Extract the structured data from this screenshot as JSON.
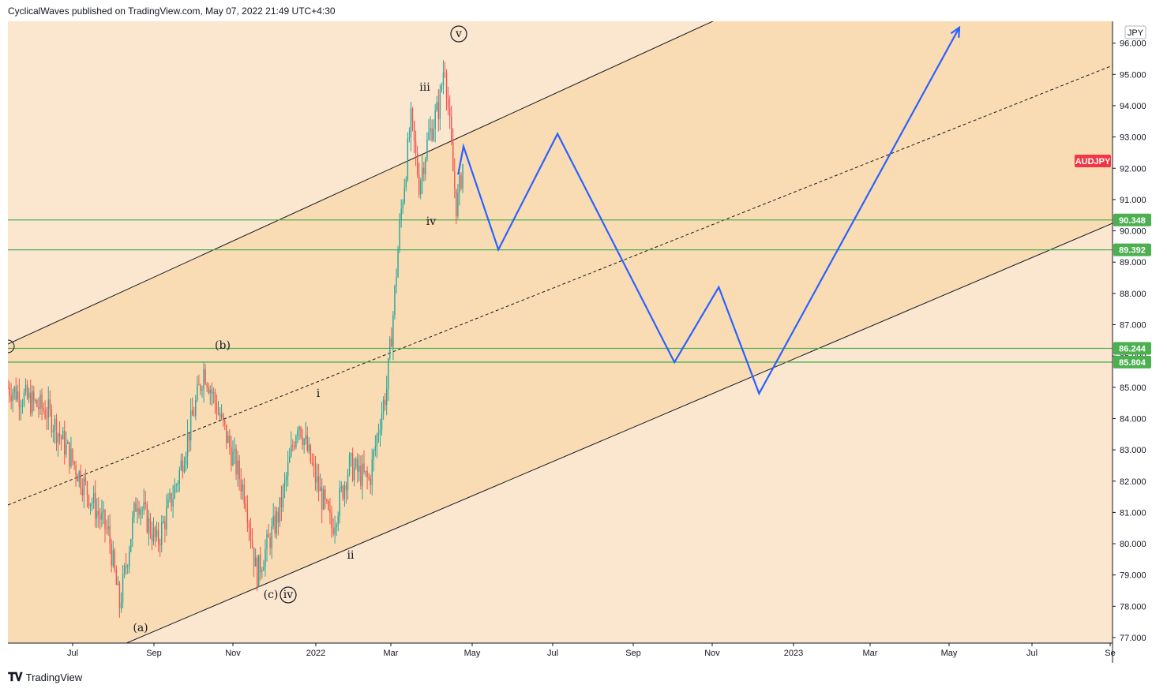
{
  "header": {
    "publisher_line": "CyclicalWaves published on TradingView.com, May 07, 2022 21:49 UTC+4:30"
  },
  "footer": {
    "brand": "TradingView"
  },
  "colors": {
    "channel_fill": "#fadcb4",
    "outer_fill": "#fbe6cf",
    "support_line": "#4caf50",
    "projection": "#2962ff",
    "candle_up": "#26a69a",
    "candle_down": "#ef5350",
    "symbol_badge": "#f23645",
    "level_badge": "#4caf50"
  },
  "chart_data": {
    "type": "candlestick",
    "symbol": "AUDJPY",
    "currency": "JPY",
    "y_axis": {
      "range": [
        77.0,
        96.8
      ],
      "ticks": [
        "77.000",
        "78.000",
        "79.000",
        "80.000",
        "81.000",
        "82.000",
        "83.000",
        "84.000",
        "85.000",
        "86.000",
        "87.000",
        "88.000",
        "89.000",
        "90.000",
        "91.000",
        "92.000",
        "93.000",
        "94.000",
        "95.000",
        "96.000"
      ]
    },
    "x_axis": {
      "labels": [
        "Jul",
        "Sep",
        "Nov",
        "2022",
        "Mar",
        "May",
        "Jul",
        "Sep",
        "Nov",
        "2023",
        "Mar",
        "May",
        "Jul",
        "Se"
      ]
    },
    "horizontal_levels": [
      {
        "value": 90.348,
        "label": "90.348"
      },
      {
        "value": 89.392,
        "label": "89.392"
      },
      {
        "value": 86.244,
        "label": "86.244"
      },
      {
        "value": 85.804,
        "label": "85.804"
      }
    ],
    "price_series": [
      [
        "2021-06-01",
        85.0
      ],
      [
        "2021-07-01",
        84.2
      ],
      [
        "2021-07-15",
        83.0
      ],
      [
        "2021-08-01",
        81.5
      ],
      [
        "2021-08-15",
        80.3
      ],
      [
        "2021-08-23",
        78.0
      ],
      [
        "2021-09-05",
        81.5
      ],
      [
        "2021-09-20",
        80.0
      ],
      [
        "2021-10-05",
        82.0
      ],
      [
        "2021-10-25",
        85.6
      ],
      [
        "2021-11-10",
        83.5
      ],
      [
        "2021-11-25",
        81.5
      ],
      [
        "2021-12-03",
        79.0
      ],
      [
        "2021-12-20",
        81.0
      ],
      [
        "2022-01-03",
        84.0
      ],
      [
        "2022-01-15",
        82.2
      ],
      [
        "2022-01-28",
        80.5
      ],
      [
        "2022-02-10",
        82.5
      ],
      [
        "2022-02-25",
        82.0
      ],
      [
        "2022-03-05",
        84.0
      ],
      [
        "2022-03-10",
        85.0
      ],
      [
        "2022-03-15",
        87.5
      ],
      [
        "2022-03-20",
        90.4
      ],
      [
        "2022-03-28",
        93.5
      ],
      [
        "2022-04-03",
        91.5
      ],
      [
        "2022-04-10",
        93.0
      ],
      [
        "2022-04-18",
        94.0
      ],
      [
        "2022-04-22",
        95.5
      ],
      [
        "2022-04-28",
        92.0
      ],
      [
        "2022-05-01",
        90.7
      ],
      [
        "2022-05-06",
        92.3
      ]
    ],
    "projection_path": [
      [
        "2022-05-02",
        91.8
      ],
      [
        "2022-05-06",
        92.7
      ],
      [
        "2022-06-01",
        89.4
      ],
      [
        "2022-07-15",
        93.1
      ],
      [
        "2022-10-10",
        85.8
      ],
      [
        "2022-11-12",
        88.2
      ],
      [
        "2022-12-12",
        84.8
      ],
      [
        "2023-05-10",
        96.5
      ]
    ],
    "wave_labels": [
      "(a)",
      "(b)",
      "(c)",
      "iv",
      "i",
      "ii",
      "iii",
      "iv",
      "v"
    ]
  }
}
